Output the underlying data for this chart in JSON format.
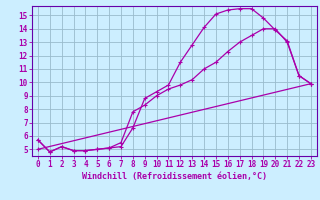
{
  "background_color": "#cceeff",
  "grid_color": "#99bbcc",
  "line_color": "#aa00aa",
  "spine_color": "#6600aa",
  "xlim": [
    -0.5,
    23.5
  ],
  "ylim": [
    4.5,
    15.7
  ],
  "xticks": [
    0,
    1,
    2,
    3,
    4,
    5,
    6,
    7,
    8,
    9,
    10,
    11,
    12,
    13,
    14,
    15,
    16,
    17,
    18,
    19,
    20,
    21,
    22,
    23
  ],
  "yticks": [
    5,
    6,
    7,
    8,
    9,
    10,
    11,
    12,
    13,
    14,
    15
  ],
  "xlabel": "Windchill (Refroidissement éolien,°C)",
  "line1_x": [
    0,
    1,
    2,
    3,
    4,
    5,
    6,
    7,
    8,
    9,
    10,
    11,
    12,
    13,
    14,
    15,
    16,
    17,
    18,
    19,
    20,
    21,
    22,
    23
  ],
  "line1_y": [
    5.7,
    4.8,
    5.2,
    4.9,
    4.9,
    5.0,
    5.1,
    5.2,
    6.6,
    8.8,
    9.3,
    9.8,
    11.5,
    12.8,
    14.1,
    15.1,
    15.4,
    15.5,
    15.5,
    14.8,
    13.9,
    13.1,
    10.5,
    9.9
  ],
  "line2_x": [
    0,
    1,
    2,
    3,
    4,
    5,
    6,
    7,
    8,
    9,
    10,
    11,
    12,
    13,
    14,
    15,
    16,
    17,
    18,
    19,
    20,
    21,
    22,
    23
  ],
  "line2_y": [
    5.7,
    4.8,
    5.2,
    4.9,
    4.9,
    5.0,
    5.1,
    5.5,
    7.8,
    8.3,
    9.0,
    9.5,
    9.8,
    10.2,
    11.0,
    11.5,
    12.3,
    13.0,
    13.5,
    14.0,
    14.0,
    13.0,
    10.5,
    9.9
  ],
  "line3_x": [
    0,
    23
  ],
  "line3_y": [
    5.0,
    9.9
  ],
  "tick_fontsize": 5.5,
  "xlabel_fontsize": 6.0
}
